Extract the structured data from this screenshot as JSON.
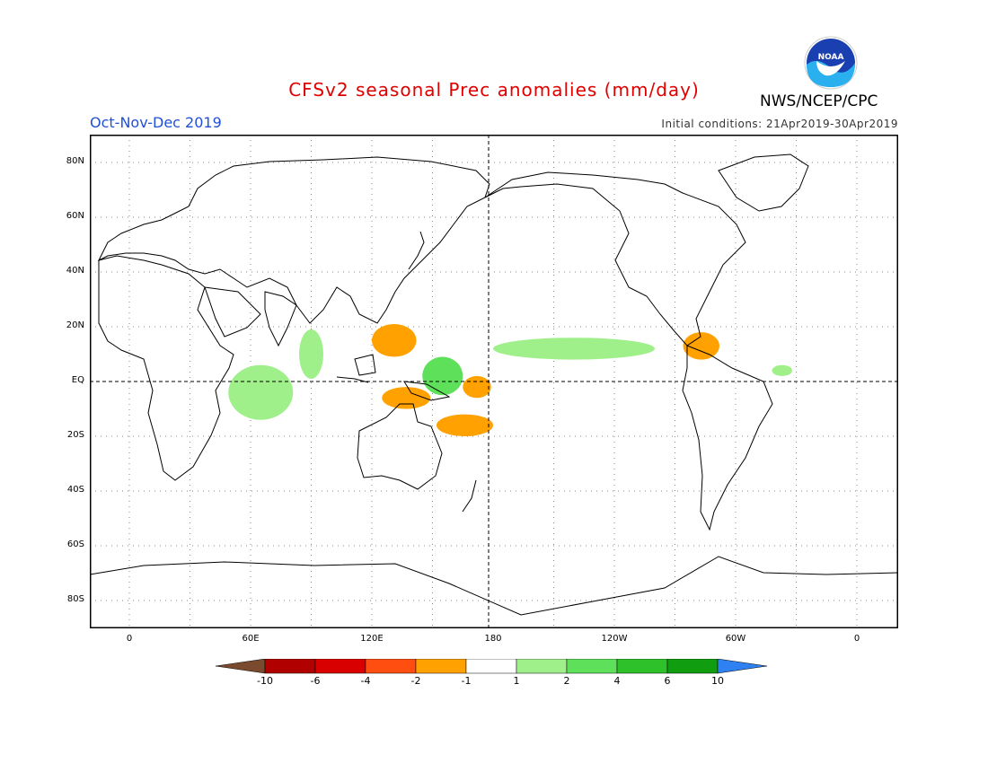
{
  "title": "CFSv2 seasonal Prec anomalies (mm/day)",
  "season": "Oct-Nov-Dec 2019",
  "initial_conditions": "Initial conditions: 21Apr2019-30Apr2019",
  "agency": "NWS/NCEP/CPC",
  "logo_text": "NOAA",
  "lat_labels": [
    "80N",
    "60N",
    "40N",
    "20N",
    "EQ",
    "20S",
    "40S",
    "60S",
    "80S"
  ],
  "lat_values": [
    80,
    60,
    40,
    20,
    0,
    -20,
    -40,
    -60,
    -80
  ],
  "lon_labels": [
    "0",
    "60E",
    "120E",
    "180",
    "120W",
    "60W",
    "0"
  ],
  "lon_values": [
    0,
    60,
    120,
    180,
    240,
    300,
    360
  ],
  "legend": {
    "labels": [
      "-10",
      "-6",
      "-4",
      "-2",
      "-1",
      "1",
      "2",
      "4",
      "6",
      "10"
    ],
    "colors": [
      "#7a4a2e",
      "#b00000",
      "#d80000",
      "#ff4e10",
      "#ffa100",
      "#ffffff",
      "#9ff08a",
      "#5ee05a",
      "#2ec12a",
      "#119d10",
      "#2f80f0"
    ]
  },
  "anomalies": [
    {
      "name": "w-pacific-dry",
      "lon": 137,
      "lat": -6,
      "rx": 12,
      "ry": 4,
      "color": "#ffa100"
    },
    {
      "name": "philippine-sea-dry",
      "lon": 131,
      "lat": 15,
      "rx": 11,
      "ry": 6,
      "color": "#ffa100"
    },
    {
      "name": "coral-sea-dry",
      "lon": 166,
      "lat": -16,
      "rx": 14,
      "ry": 4,
      "color": "#ffa100"
    },
    {
      "name": "c-pacific-dry",
      "lon": 172,
      "lat": -2,
      "rx": 7,
      "ry": 4,
      "color": "#ffa100"
    },
    {
      "name": "caribbean-dry",
      "lon": 283,
      "lat": 13,
      "rx": 9,
      "ry": 5,
      "color": "#ffa100"
    },
    {
      "name": "indian-ocean-wet",
      "lon": 65,
      "lat": -4,
      "rx": 16,
      "ry": 10,
      "color": "#9ff08a"
    },
    {
      "name": "bay-of-bengal-wet",
      "lon": 90,
      "lat": 10,
      "rx": 6,
      "ry": 9,
      "color": "#9ff08a"
    },
    {
      "name": "w-pacific-wet",
      "lon": 155,
      "lat": 2,
      "rx": 10,
      "ry": 7,
      "color": "#5ee05a"
    },
    {
      "name": "itcz-wet",
      "lon": 220,
      "lat": 12,
      "rx": 40,
      "ry": 4,
      "color": "#9ff08a"
    },
    {
      "name": "atlantic-wet",
      "lon": 323,
      "lat": 4,
      "rx": 5,
      "ry": 2,
      "color": "#9ff08a"
    }
  ]
}
